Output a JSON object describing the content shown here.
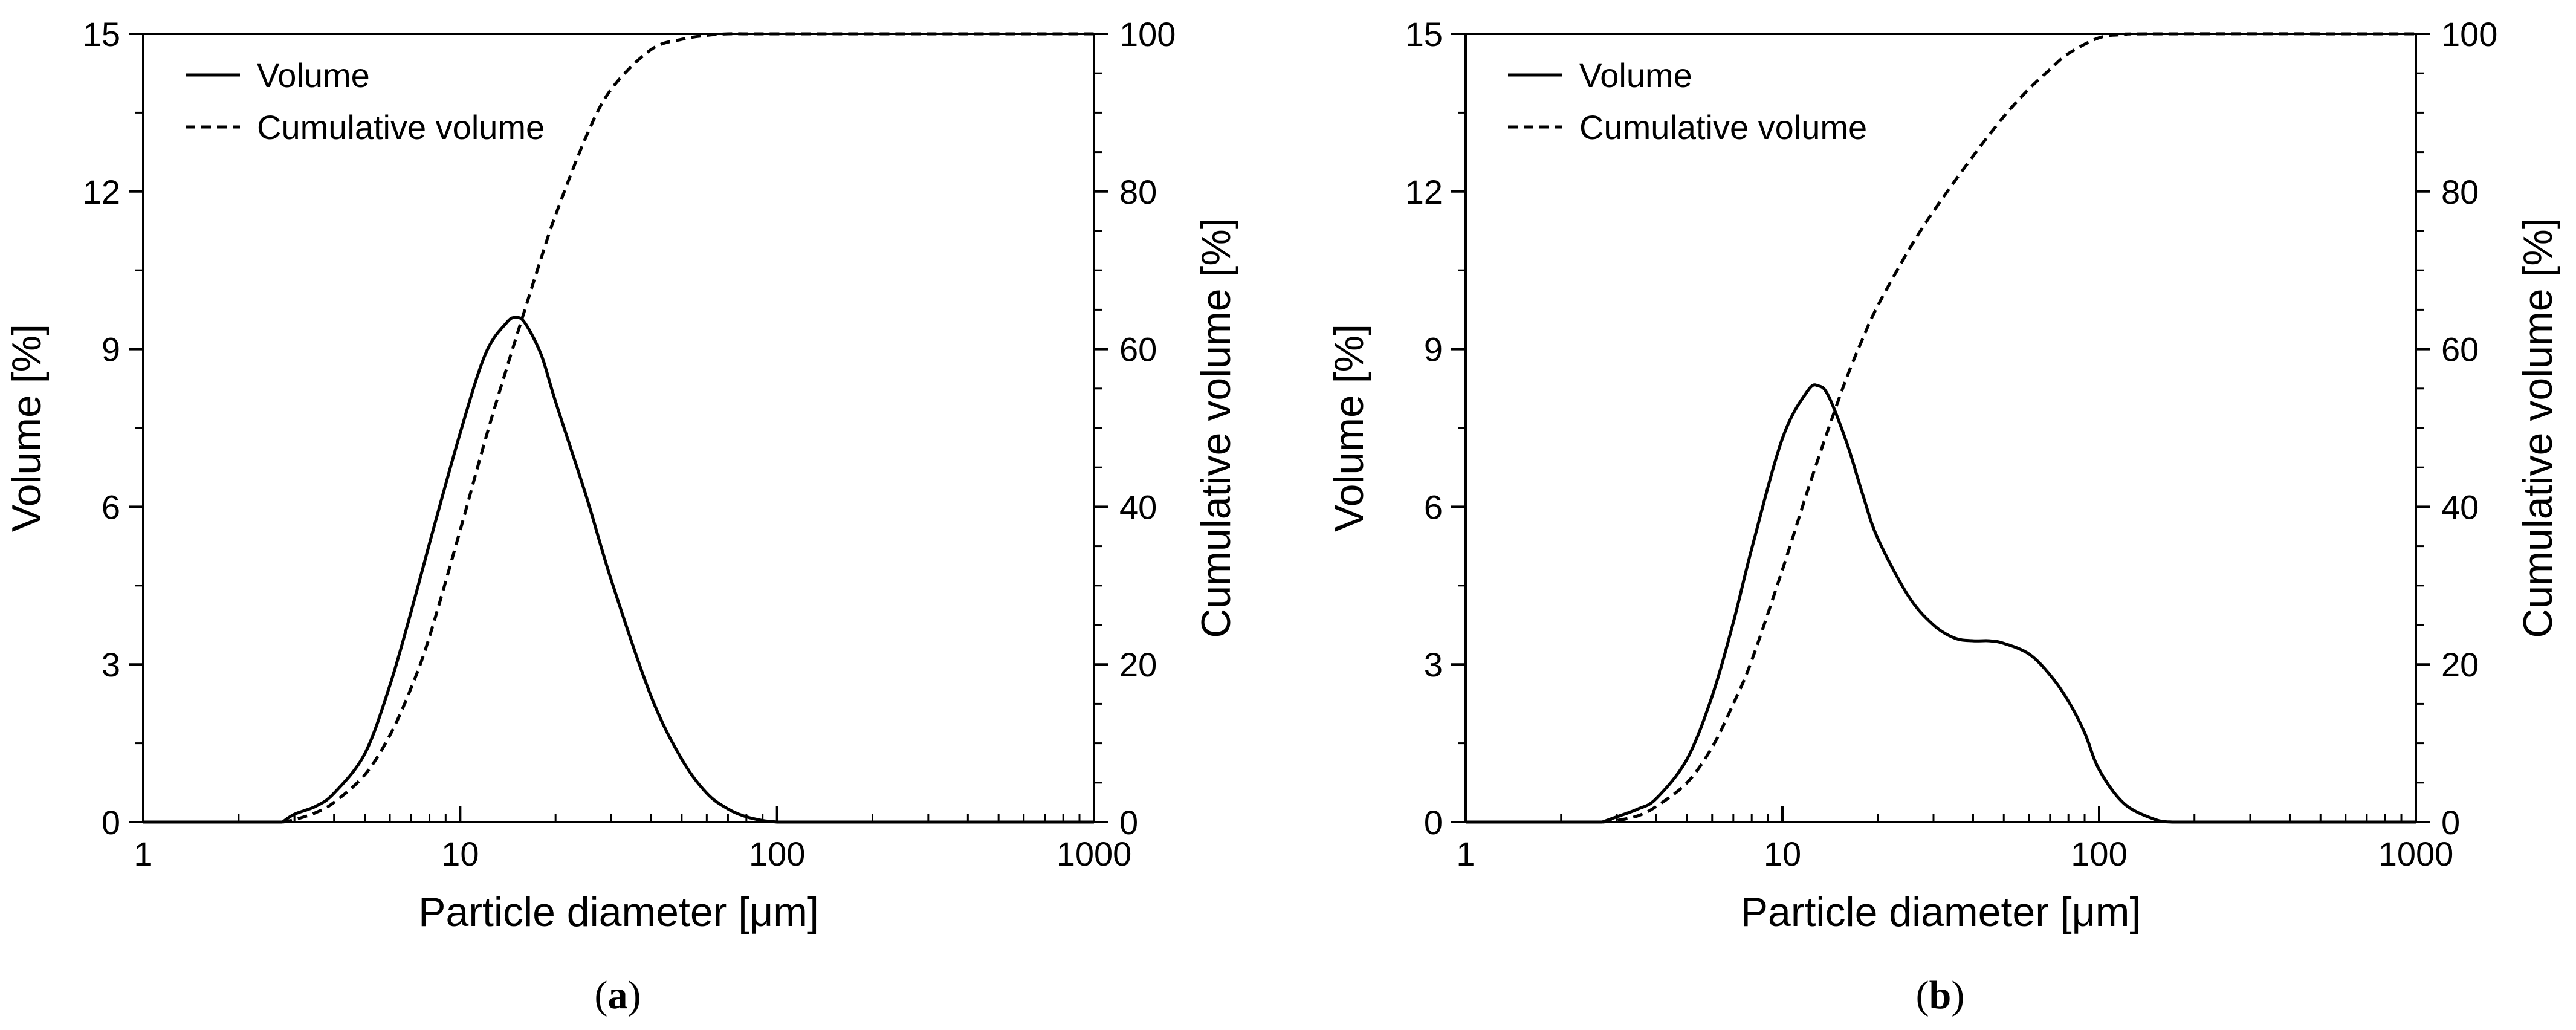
{
  "chart_data": [
    {
      "type": "line",
      "panel_label": "a",
      "xscale": "log",
      "xlim": [
        1,
        1000
      ],
      "ylim": [
        0,
        15
      ],
      "y2lim": [
        0,
        100
      ],
      "xlabel": "Particle diameter [μm]",
      "ylabel": "Volume [%]",
      "y2label": "Cumulative volume [%]",
      "xticks": [
        "1",
        "10",
        "100",
        "1000"
      ],
      "yticks": [
        "0",
        "3",
        "6",
        "9",
        "12",
        "15"
      ],
      "y2ticks": [
        "0",
        "20",
        "40",
        "60",
        "80",
        "100"
      ],
      "legend": {
        "position": "top-left",
        "entries": [
          "Volume",
          "Cumulative volume"
        ]
      },
      "series": [
        {
          "name": "Volume",
          "axis": "left",
          "style": "solid",
          "x": [
            2.75,
            3.0,
            3.5,
            4.0,
            5.0,
            6.0,
            7.0,
            8.0,
            10.0,
            12.0,
            14.0,
            15.0,
            16.0,
            18.0,
            20.0,
            25.0,
            30.0,
            40.0,
            50.0,
            60.0,
            70.0,
            80.0,
            90.0,
            100.0
          ],
          "values": [
            0.0,
            0.15,
            0.3,
            0.55,
            1.3,
            2.6,
            4.0,
            5.3,
            7.4,
            8.9,
            9.5,
            9.6,
            9.5,
            8.9,
            8.0,
            6.2,
            4.6,
            2.4,
            1.2,
            0.55,
            0.25,
            0.1,
            0.03,
            0.0
          ]
        },
        {
          "name": "Cumulative volume",
          "axis": "right",
          "style": "dashed",
          "x": [
            2.75,
            3.0,
            3.5,
            4.0,
            5.0,
            6.0,
            7.0,
            8.0,
            10.0,
            12.0,
            14.0,
            16.0,
            18.0,
            20.0,
            25.0,
            30.0,
            40.0,
            50.0,
            60.0,
            70.0,
            80.0,
            100.0,
            150.0,
            1000.0
          ],
          "values": [
            0.0,
            0.3,
            1.2,
            2.5,
            6.0,
            11.0,
            17.0,
            23.5,
            37.0,
            48.5,
            57.5,
            65.0,
            71.5,
            77.0,
            87.0,
            93.0,
            98.0,
            99.3,
            99.8,
            100.0,
            100.0,
            100.0,
            100.0,
            100.0
          ]
        }
      ]
    },
    {
      "type": "line",
      "panel_label": "b",
      "xscale": "log",
      "xlim": [
        1,
        1000
      ],
      "ylim": [
        0,
        15
      ],
      "y2lim": [
        0,
        100
      ],
      "xlabel": "Particle diameter [μm]",
      "ylabel": "Volume [%]",
      "y2label": "Cumulative volume [%]",
      "xticks": [
        "1",
        "10",
        "100",
        "1000"
      ],
      "yticks": [
        "0",
        "3",
        "6",
        "9",
        "12",
        "15"
      ],
      "y2ticks": [
        "0",
        "20",
        "40",
        "60",
        "80",
        "100"
      ],
      "legend": {
        "position": "top-left",
        "entries": [
          "Volume",
          "Cumulative volume"
        ]
      },
      "series": [
        {
          "name": "Volume",
          "axis": "left",
          "style": "solid",
          "x": [
            2.7,
            3.0,
            3.5,
            4.0,
            5.0,
            6.0,
            7.0,
            8.0,
            10.0,
            12.0,
            13.0,
            14.0,
            16.0,
            18.0,
            20.0,
            25.0,
            30.0,
            35.0,
            40.0,
            45.0,
            50.0,
            60.0,
            70.0,
            80.0,
            90.0,
            100.0,
            120.0,
            150.0,
            170.0
          ],
          "values": [
            0.0,
            0.1,
            0.25,
            0.45,
            1.2,
            2.4,
            3.8,
            5.2,
            7.3,
            8.2,
            8.3,
            8.1,
            7.2,
            6.2,
            5.4,
            4.3,
            3.75,
            3.5,
            3.45,
            3.45,
            3.4,
            3.2,
            2.8,
            2.3,
            1.7,
            1.0,
            0.35,
            0.05,
            0.0
          ]
        },
        {
          "name": "Cumulative volume",
          "axis": "right",
          "style": "dashed",
          "x": [
            2.7,
            3.0,
            3.5,
            4.0,
            5.0,
            6.0,
            7.0,
            8.0,
            10.0,
            12.0,
            14.0,
            16.0,
            18.0,
            20.0,
            25.0,
            30.0,
            40.0,
            50.0,
            60.0,
            70.0,
            80.0,
            100.0,
            120.0,
            150.0,
            1000.0
          ],
          "values": [
            0.0,
            0.2,
            0.8,
            2.0,
            5.0,
            9.5,
            15.0,
            20.5,
            32.0,
            42.0,
            50.0,
            56.5,
            61.5,
            65.5,
            72.5,
            77.5,
            84.5,
            89.5,
            93.0,
            95.5,
            97.5,
            99.5,
            99.9,
            100.0,
            100.0
          ]
        }
      ]
    }
  ],
  "captions": [
    "(a)",
    "(b)"
  ]
}
